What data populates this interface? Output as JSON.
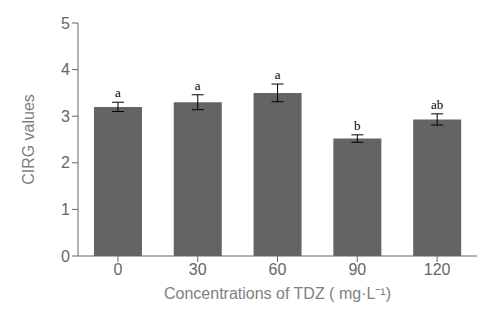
{
  "chart_data": {
    "type": "bar",
    "categories": [
      "0",
      "30",
      "60",
      "90",
      "120"
    ],
    "values": [
      3.2,
      3.3,
      3.5,
      2.52,
      2.93
    ],
    "errors": [
      0.1,
      0.16,
      0.19,
      0.08,
      0.12
    ],
    "annotations": [
      "a",
      "a",
      "a",
      "b",
      "ab"
    ],
    "color": "#646464",
    "xlabel": "Concentrations of TDZ ( mg·L⁻¹)",
    "ylabel": "CIRG values",
    "ylim": [
      0,
      5
    ],
    "yticks": [
      0,
      1,
      2,
      3,
      4,
      5
    ],
    "grid": false
  }
}
